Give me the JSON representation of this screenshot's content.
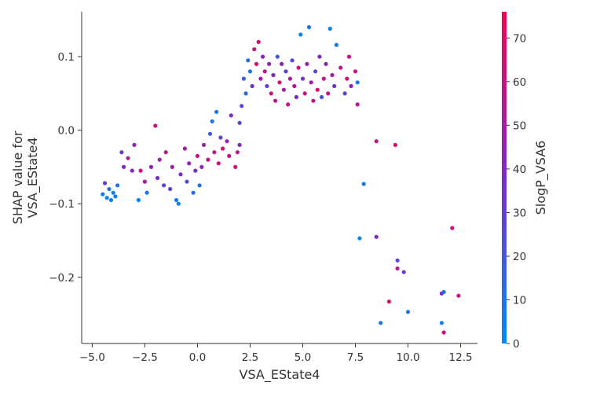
{
  "chart_data": {
    "type": "scatter",
    "title": "",
    "xlabel": "VSA_EState4",
    "ylabel_lines": [
      "SHAP value for",
      "VSA_EState4"
    ],
    "xlim": [
      -5.5,
      13.3
    ],
    "ylim": [
      -0.29,
      0.161
    ],
    "x_ticks": [
      -5.0,
      -2.5,
      0.0,
      2.5,
      5.0,
      7.5,
      10.0,
      12.5
    ],
    "x_tick_labels": [
      "−5.0",
      "−2.5",
      "0.0",
      "2.5",
      "5.0",
      "7.5",
      "10.0",
      "12.5"
    ],
    "y_ticks": [
      -0.2,
      -0.1,
      0.0,
      0.1
    ],
    "y_tick_labels": [
      "−0.2",
      "−0.1",
      "0.0",
      "0.1"
    ],
    "grid": false,
    "colorbar": {
      "label": "SlogP_VSA6",
      "range": [
        0,
        76
      ],
      "ticks": [
        0,
        10,
        20,
        30,
        40,
        50,
        60,
        70
      ],
      "tick_labels": [
        "0",
        "10",
        "20",
        "30",
        "40",
        "50",
        "60",
        "70"
      ],
      "color_low": "#008afb",
      "color_mid": "#7c2bc9",
      "color_high": "#ff0052"
    },
    "points": [
      {
        "x": -4.5,
        "y": -0.087,
        "c": 5
      },
      {
        "x": -4.4,
        "y": -0.072,
        "c": 30
      },
      {
        "x": -4.3,
        "y": -0.092,
        "c": 5
      },
      {
        "x": -4.2,
        "y": -0.08,
        "c": 8
      },
      {
        "x": -4.1,
        "y": -0.095,
        "c": 4
      },
      {
        "x": -4.0,
        "y": -0.085,
        "c": 6
      },
      {
        "x": -3.9,
        "y": -0.09,
        "c": 5
      },
      {
        "x": -3.8,
        "y": -0.075,
        "c": 10
      },
      {
        "x": -3.6,
        "y": -0.03,
        "c": 35
      },
      {
        "x": -3.5,
        "y": -0.05,
        "c": 40
      },
      {
        "x": -3.3,
        "y": -0.038,
        "c": 55
      },
      {
        "x": -3.1,
        "y": -0.055,
        "c": 38
      },
      {
        "x": -3.0,
        "y": -0.02,
        "c": 45
      },
      {
        "x": -2.8,
        "y": -0.095,
        "c": 5
      },
      {
        "x": -2.7,
        "y": -0.055,
        "c": 60
      },
      {
        "x": -2.5,
        "y": -0.07,
        "c": 50
      },
      {
        "x": -2.4,
        "y": -0.085,
        "c": 8
      },
      {
        "x": -2.2,
        "y": -0.05,
        "c": 42
      },
      {
        "x": -2.0,
        "y": 0.006,
        "c": 62
      },
      {
        "x": -1.9,
        "y": -0.065,
        "c": 35
      },
      {
        "x": -1.8,
        "y": -0.04,
        "c": 48
      },
      {
        "x": -1.6,
        "y": -0.075,
        "c": 30
      },
      {
        "x": -1.5,
        "y": -0.03,
        "c": 55
      },
      {
        "x": -1.3,
        "y": -0.08,
        "c": 28
      },
      {
        "x": -1.2,
        "y": -0.05,
        "c": 50
      },
      {
        "x": -1.0,
        "y": -0.095,
        "c": 6
      },
      {
        "x": -0.9,
        "y": -0.1,
        "c": 5
      },
      {
        "x": -0.8,
        "y": -0.06,
        "c": 40
      },
      {
        "x": -0.6,
        "y": -0.025,
        "c": 52
      },
      {
        "x": -0.5,
        "y": -0.07,
        "c": 22
      },
      {
        "x": -0.4,
        "y": -0.045,
        "c": 46
      },
      {
        "x": -0.2,
        "y": -0.085,
        "c": 12
      },
      {
        "x": -0.1,
        "y": -0.055,
        "c": 36
      },
      {
        "x": 0.0,
        "y": -0.035,
        "c": 58
      },
      {
        "x": 0.1,
        "y": -0.075,
        "c": 10
      },
      {
        "x": 0.2,
        "y": -0.05,
        "c": 44
      },
      {
        "x": 0.3,
        "y": -0.02,
        "c": 48
      },
      {
        "x": 0.5,
        "y": -0.04,
        "c": 62
      },
      {
        "x": 0.6,
        "y": -0.005,
        "c": 20
      },
      {
        "x": 0.7,
        "y": 0.012,
        "c": 10
      },
      {
        "x": 0.8,
        "y": -0.03,
        "c": 55
      },
      {
        "x": 0.9,
        "y": 0.025,
        "c": 8
      },
      {
        "x": 1.0,
        "y": -0.045,
        "c": 60
      },
      {
        "x": 1.1,
        "y": -0.01,
        "c": 30
      },
      {
        "x": 1.2,
        "y": -0.025,
        "c": 65
      },
      {
        "x": 1.4,
        "y": -0.015,
        "c": 45
      },
      {
        "x": 1.5,
        "y": -0.035,
        "c": 58
      },
      {
        "x": 1.6,
        "y": 0.02,
        "c": 35
      },
      {
        "x": 1.8,
        "y": -0.05,
        "c": 62
      },
      {
        "x": 1.9,
        "y": -0.03,
        "c": 55
      },
      {
        "x": 2.0,
        "y": -0.02,
        "c": 40
      },
      {
        "x": 2.0,
        "y": 0.01,
        "c": 30
      },
      {
        "x": 2.1,
        "y": 0.033,
        "c": 28
      },
      {
        "x": 2.2,
        "y": 0.07,
        "c": 20
      },
      {
        "x": 2.3,
        "y": 0.05,
        "c": 15
      },
      {
        "x": 2.4,
        "y": 0.095,
        "c": 12
      },
      {
        "x": 2.5,
        "y": 0.08,
        "c": 8
      },
      {
        "x": 2.6,
        "y": 0.06,
        "c": 35
      },
      {
        "x": 2.7,
        "y": 0.11,
        "c": 62
      },
      {
        "x": 2.8,
        "y": 0.09,
        "c": 70
      },
      {
        "x": 2.9,
        "y": 0.12,
        "c": 66
      },
      {
        "x": 3.0,
        "y": 0.07,
        "c": 50
      },
      {
        "x": 3.1,
        "y": 0.1,
        "c": 40
      },
      {
        "x": 3.2,
        "y": 0.08,
        "c": 58
      },
      {
        "x": 3.3,
        "y": 0.06,
        "c": 32
      },
      {
        "x": 3.4,
        "y": 0.09,
        "c": 45
      },
      {
        "x": 3.5,
        "y": 0.05,
        "c": 62
      },
      {
        "x": 3.6,
        "y": 0.075,
        "c": 38
      },
      {
        "x": 3.7,
        "y": 0.04,
        "c": 55
      },
      {
        "x": 3.8,
        "y": 0.1,
        "c": 20
      },
      {
        "x": 3.9,
        "y": 0.065,
        "c": 65
      },
      {
        "x": 4.0,
        "y": 0.09,
        "c": 42
      },
      {
        "x": 4.1,
        "y": 0.055,
        "c": 48
      },
      {
        "x": 4.2,
        "y": 0.08,
        "c": 30
      },
      {
        "x": 4.3,
        "y": 0.035,
        "c": 60
      },
      {
        "x": 4.4,
        "y": 0.07,
        "c": 52
      },
      {
        "x": 4.5,
        "y": 0.095,
        "c": 25
      },
      {
        "x": 4.6,
        "y": 0.06,
        "c": 55
      },
      {
        "x": 4.7,
        "y": 0.045,
        "c": 40
      },
      {
        "x": 4.8,
        "y": 0.085,
        "c": 62
      },
      {
        "x": 4.9,
        "y": 0.13,
        "c": 5
      },
      {
        "x": 5.0,
        "y": 0.07,
        "c": 35
      },
      {
        "x": 5.1,
        "y": 0.05,
        "c": 58
      },
      {
        "x": 5.2,
        "y": 0.09,
        "c": 45
      },
      {
        "x": 5.3,
        "y": 0.14,
        "c": 8
      },
      {
        "x": 5.4,
        "y": 0.065,
        "c": 50
      },
      {
        "x": 5.5,
        "y": 0.04,
        "c": 60
      },
      {
        "x": 5.6,
        "y": 0.08,
        "c": 28
      },
      {
        "x": 5.7,
        "y": 0.055,
        "c": 65
      },
      {
        "x": 5.8,
        "y": 0.1,
        "c": 38
      },
      {
        "x": 5.9,
        "y": 0.045,
        "c": 20
      },
      {
        "x": 6.0,
        "y": 0.07,
        "c": 55
      },
      {
        "x": 6.1,
        "y": 0.09,
        "c": 42
      },
      {
        "x": 6.2,
        "y": 0.05,
        "c": 62
      },
      {
        "x": 6.3,
        "y": 0.138,
        "c": 6
      },
      {
        "x": 6.4,
        "y": 0.075,
        "c": 48
      },
      {
        "x": 6.5,
        "y": 0.06,
        "c": 35
      },
      {
        "x": 6.6,
        "y": 0.116,
        "c": 10
      },
      {
        "x": 6.8,
        "y": 0.085,
        "c": 58
      },
      {
        "x": 7.0,
        "y": 0.05,
        "c": 30
      },
      {
        "x": 7.1,
        "y": 0.07,
        "c": 65
      },
      {
        "x": 7.2,
        "y": 0.1,
        "c": 62
      },
      {
        "x": 7.3,
        "y": 0.06,
        "c": 45
      },
      {
        "x": 7.5,
        "y": 0.08,
        "c": 60
      },
      {
        "x": 7.6,
        "y": 0.035,
        "c": 55
      },
      {
        "x": 7.6,
        "y": 0.065,
        "c": 8
      },
      {
        "x": 7.9,
        "y": -0.073,
        "c": 7
      },
      {
        "x": 7.7,
        "y": -0.147,
        "c": 5
      },
      {
        "x": 8.5,
        "y": -0.015,
        "c": 60
      },
      {
        "x": 8.5,
        "y": -0.145,
        "c": 40
      },
      {
        "x": 8.7,
        "y": -0.262,
        "c": 8
      },
      {
        "x": 9.1,
        "y": -0.233,
        "c": 65
      },
      {
        "x": 9.4,
        "y": -0.02,
        "c": 68
      },
      {
        "x": 9.5,
        "y": -0.177,
        "c": 28
      },
      {
        "x": 9.5,
        "y": -0.188,
        "c": 55
      },
      {
        "x": 9.8,
        "y": -0.193,
        "c": 32
      },
      {
        "x": 10.0,
        "y": -0.247,
        "c": 10
      },
      {
        "x": 11.6,
        "y": -0.222,
        "c": 38
      },
      {
        "x": 11.7,
        "y": -0.22,
        "c": 8
      },
      {
        "x": 11.6,
        "y": -0.262,
        "c": 5
      },
      {
        "x": 11.7,
        "y": -0.275,
        "c": 62
      },
      {
        "x": 12.1,
        "y": -0.133,
        "c": 66
      },
      {
        "x": 12.4,
        "y": -0.225,
        "c": 60
      }
    ]
  }
}
